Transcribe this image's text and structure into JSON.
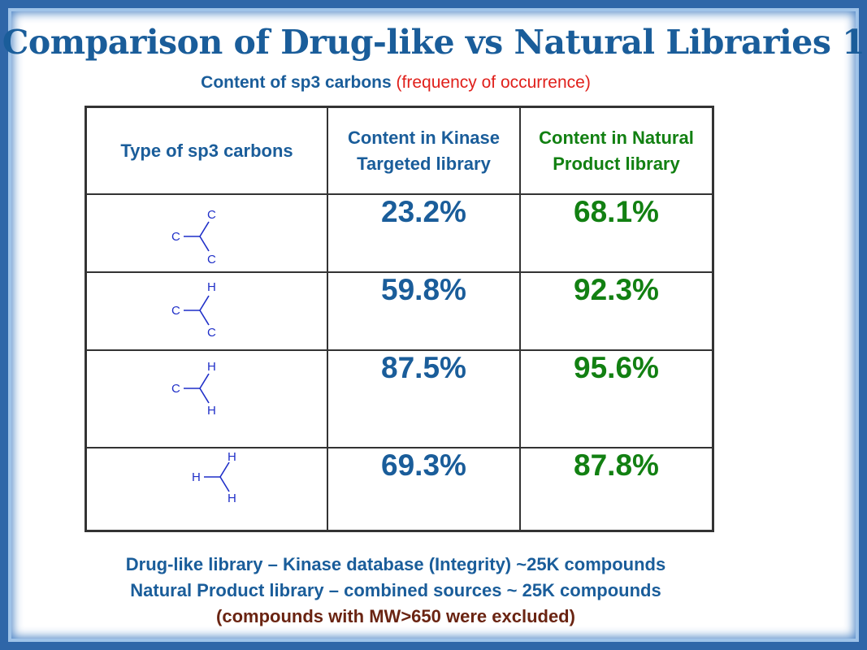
{
  "title": "Comparison of Drug-like vs Natural Libraries 1",
  "subtitle": {
    "main": "Content of sp3 carbons",
    "qualifier": "(frequency of occurrence)"
  },
  "table": {
    "headers": {
      "type": "Type of sp3 carbons",
      "kinase": "Content in Kinase Targeted library",
      "natural": "Content in Natural Product library"
    },
    "rows": [
      {
        "substituents": [
          "C",
          "C",
          "C"
        ],
        "kinase": "23.2%",
        "natural": "68.1%"
      },
      {
        "substituents": [
          "C",
          "H",
          "C"
        ],
        "kinase": "59.8%",
        "natural": "92.3%"
      },
      {
        "substituents": [
          "C",
          "H",
          "H"
        ],
        "kinase": "87.5%",
        "natural": "95.6%"
      },
      {
        "substituents": [
          "H",
          "H",
          "H"
        ],
        "kinase": "69.3%",
        "natural": "87.8%"
      }
    ]
  },
  "notes": [
    "Drug-like library – Kinase database (Integrity) ~25K compounds",
    "Natural Product library – combined sources ~ 25K compounds",
    "(compounds with MW>650 were excluded)"
  ],
  "colors": {
    "frame": "#2f66a8",
    "kinase": "#1a5d9a",
    "natural": "#128012",
    "qualifier": "#e0201b",
    "structure": "#1f2fc8",
    "exclusion_note": "#6a2412"
  }
}
